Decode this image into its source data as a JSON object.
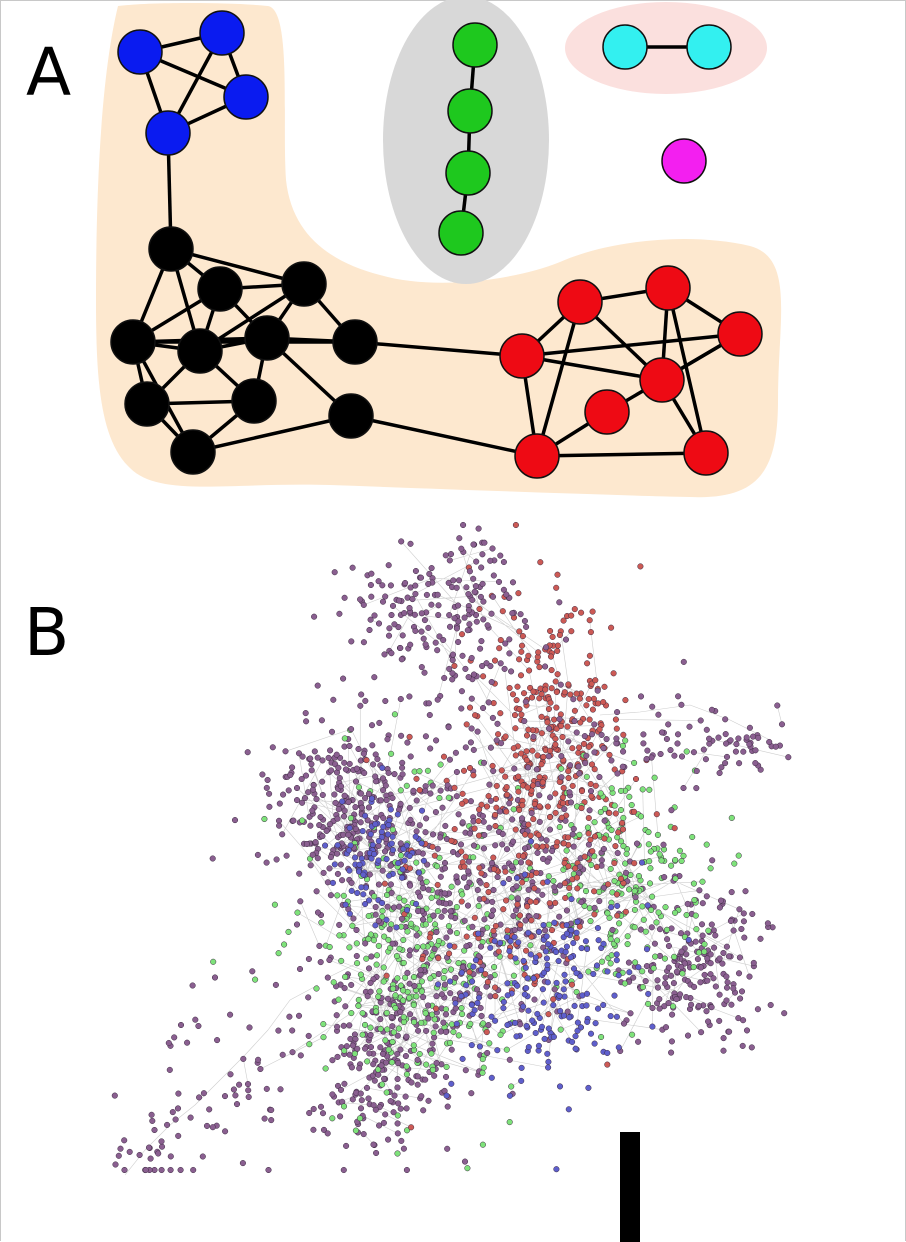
{
  "panels": {
    "a": {
      "label": "A"
    },
    "b": {
      "label": "B"
    }
  },
  "colors": {
    "blue_community": "#0a1bf0",
    "black_community": "#000000",
    "green_community": "#1ec81e",
    "cyan_community": "#33f0f0",
    "magenta_node": "#f31ff0",
    "red_community": "#ee0a14",
    "hull_orange": "#fde8cf",
    "hull_gray": "#d8d8d8",
    "hull_pink": "#fbe0de",
    "b_purple": "#8a5f90",
    "b_red": "#cc5a55",
    "b_green": "#7ee27a",
    "b_blue": "#5e5fcc",
    "b_edge": "#b9b9b9"
  },
  "diagram_a": {
    "nodes": [
      {
        "id": "b1",
        "group": "blue"
      },
      {
        "id": "b2",
        "group": "blue"
      },
      {
        "id": "b3",
        "group": "blue"
      },
      {
        "id": "b4",
        "group": "blue"
      },
      {
        "id": "k1",
        "group": "black"
      },
      {
        "id": "k2",
        "group": "black"
      },
      {
        "id": "k3",
        "group": "black"
      },
      {
        "id": "k4",
        "group": "black"
      },
      {
        "id": "k5",
        "group": "black"
      },
      {
        "id": "k6",
        "group": "black"
      },
      {
        "id": "k7",
        "group": "black"
      },
      {
        "id": "k8",
        "group": "black"
      },
      {
        "id": "k9",
        "group": "black"
      },
      {
        "id": "k10",
        "group": "black"
      },
      {
        "id": "k11",
        "group": "black"
      },
      {
        "id": "g1",
        "group": "green"
      },
      {
        "id": "g2",
        "group": "green"
      },
      {
        "id": "g3",
        "group": "green"
      },
      {
        "id": "g4",
        "group": "green"
      },
      {
        "id": "c1",
        "group": "cyan"
      },
      {
        "id": "c2",
        "group": "cyan"
      },
      {
        "id": "m1",
        "group": "magenta"
      },
      {
        "id": "r1",
        "group": "red"
      },
      {
        "id": "r2",
        "group": "red"
      },
      {
        "id": "r3",
        "group": "red"
      },
      {
        "id": "r4",
        "group": "red"
      },
      {
        "id": "r5",
        "group": "red"
      },
      {
        "id": "r6",
        "group": "red"
      },
      {
        "id": "r7",
        "group": "red"
      },
      {
        "id": "r8",
        "group": "red"
      }
    ],
    "edges": [
      [
        "b1",
        "b2"
      ],
      [
        "b1",
        "b3"
      ],
      [
        "b1",
        "b4"
      ],
      [
        "b2",
        "b3"
      ],
      [
        "b2",
        "b4"
      ],
      [
        "b3",
        "b4"
      ],
      [
        "b4",
        "k1"
      ],
      [
        "k1",
        "k2"
      ],
      [
        "k1",
        "k3"
      ],
      [
        "k1",
        "k4"
      ],
      [
        "k1",
        "k5"
      ],
      [
        "k2",
        "k3"
      ],
      [
        "k2",
        "k4"
      ],
      [
        "k2",
        "k5"
      ],
      [
        "k2",
        "k6"
      ],
      [
        "k3",
        "k6"
      ],
      [
        "k3",
        "k7"
      ],
      [
        "k3",
        "k4"
      ],
      [
        "k4",
        "k5"
      ],
      [
        "k4",
        "k6"
      ],
      [
        "k4",
        "k8"
      ],
      [
        "k4",
        "k9"
      ],
      [
        "k5",
        "k6"
      ],
      [
        "k5",
        "k7"
      ],
      [
        "k5",
        "k8"
      ],
      [
        "k6",
        "k7"
      ],
      [
        "k6",
        "k11"
      ],
      [
        "k8",
        "k9"
      ],
      [
        "k8",
        "k10"
      ],
      [
        "k9",
        "k10"
      ],
      [
        "k9",
        "k6"
      ],
      [
        "k10",
        "k11"
      ],
      [
        "k10",
        "k5"
      ],
      [
        "k7",
        "r1"
      ],
      [
        "k11",
        "r7"
      ],
      [
        "g1",
        "g2"
      ],
      [
        "g2",
        "g3"
      ],
      [
        "g3",
        "g4"
      ],
      [
        "c1",
        "c2"
      ],
      [
        "r1",
        "r2"
      ],
      [
        "r1",
        "r4"
      ],
      [
        "r1",
        "r7"
      ],
      [
        "r1",
        "r5"
      ],
      [
        "r2",
        "r3"
      ],
      [
        "r2",
        "r7"
      ],
      [
        "r2",
        "r5"
      ],
      [
        "r3",
        "r4"
      ],
      [
        "r3",
        "r8"
      ],
      [
        "r3",
        "r5"
      ],
      [
        "r4",
        "r6"
      ],
      [
        "r4",
        "r5"
      ],
      [
        "r5",
        "r8"
      ],
      [
        "r6",
        "r7"
      ],
      [
        "r7",
        "r8"
      ]
    ]
  },
  "diagram_b": {
    "node_count_drawn": 2600
  }
}
